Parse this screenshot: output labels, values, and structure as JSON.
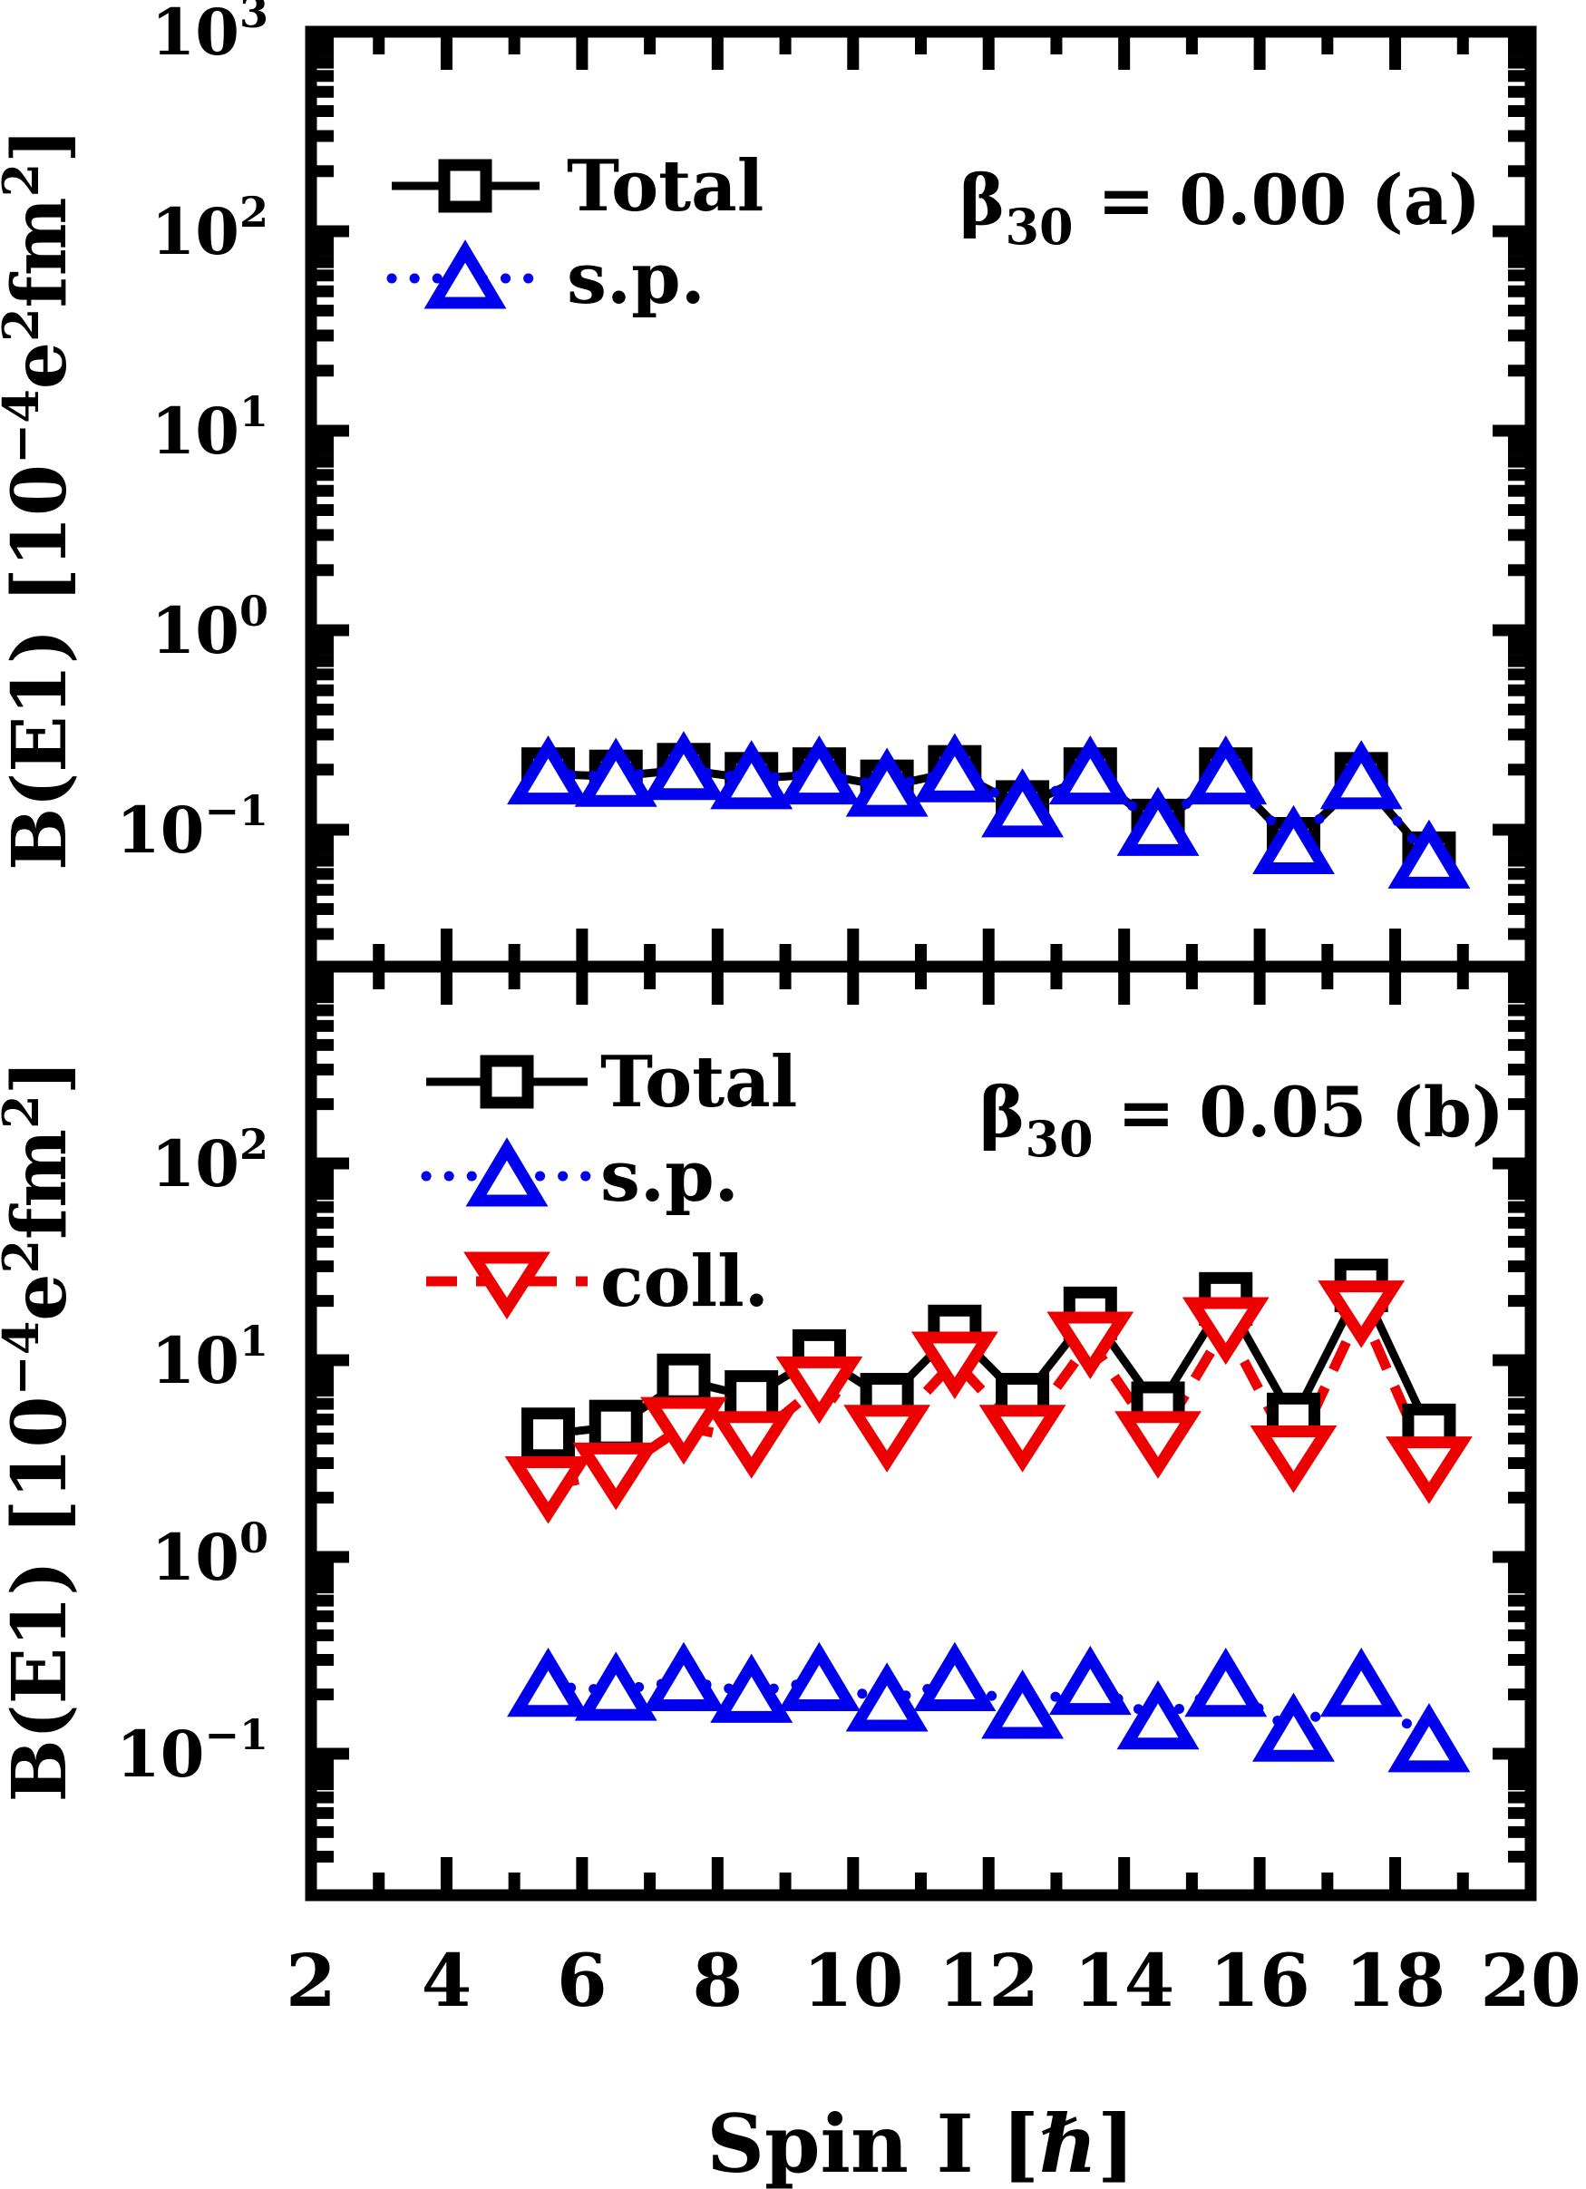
{
  "figure": {
    "background": "#ffffff",
    "x_axis": {
      "label": "Spin I [ℏ]",
      "tick_values": [
        2,
        4,
        6,
        8,
        10,
        12,
        14,
        16,
        18,
        20
      ],
      "tick_labels": [
        "2",
        "4",
        "6",
        "8",
        "10",
        "12",
        "14",
        "16",
        "18",
        "20"
      ],
      "minor_tick_values": [
        3,
        5,
        7,
        9,
        11,
        13,
        15,
        17,
        19
      ],
      "range": [
        2,
        20
      ]
    },
    "y_axis": {
      "label_plain": "B(E1) [10−4e2fm2]",
      "label_parts": [
        {
          "t": "B(E1) [10"
        },
        {
          "t": "−4",
          "sup": true
        },
        {
          "t": "e"
        },
        {
          "t": "2",
          "sup": true
        },
        {
          "t": "fm"
        },
        {
          "t": "2",
          "sup": true
        },
        {
          "t": "]"
        }
      ]
    },
    "panels": [
      {
        "id": "a",
        "title_parts": [
          {
            "t": "β"
          },
          {
            "t": "30",
            "sub": true
          },
          {
            "t": " = 0.00 "
          },
          {
            "t": "(a)"
          }
        ],
        "title_plain": "β30 = 0.00 (a)",
        "y_tick_exponents": [
          3,
          2,
          1,
          0,
          -1
        ],
        "legend": [
          {
            "label": "Total",
            "color": "#000000",
            "marker": "square",
            "line": "solid"
          },
          {
            "label": "s.p.",
            "color": "#0000EE",
            "marker": "triangle-up",
            "line": "dotted"
          }
        ]
      },
      {
        "id": "b",
        "title_parts": [
          {
            "t": "β"
          },
          {
            "t": "30",
            "sub": true
          },
          {
            "t": " = 0.05 "
          },
          {
            "t": "(b)"
          }
        ],
        "title_plain": "β30 = 0.05 (b)",
        "y_tick_exponents": [
          2,
          1,
          0,
          -1
        ],
        "legend": [
          {
            "label": "Total",
            "color": "#000000",
            "marker": "square",
            "line": "solid"
          },
          {
            "label": "s.p.",
            "color": "#0000EE",
            "marker": "triangle-up",
            "line": "dotted"
          },
          {
            "label": "coll.",
            "color": "#EE0000",
            "marker": "triangle-down",
            "line": "dashed"
          }
        ]
      }
    ]
  },
  "chart_data": [
    {
      "type": "line",
      "panel": "a",
      "title": "β30 = 0.00 (a)",
      "xlabel": "Spin I [ℏ]",
      "ylabel": "B(E1) [10−4 e2fm2]",
      "yscale": "log",
      "xlim": [
        2,
        20
      ],
      "ylim": [
        0.02,
        1000
      ],
      "legend_position": "upper-left",
      "grid": false,
      "x": [
        5.5,
        6.5,
        7.5,
        8.5,
        9.5,
        10.5,
        11.5,
        12.5,
        13.5,
        14.5,
        15.5,
        16.5,
        17.5,
        18.5
      ],
      "series": [
        {
          "name": "Total",
          "color": "#000000",
          "marker": "square",
          "line": "solid",
          "values": [
            0.19,
            0.185,
            0.2,
            0.18,
            0.19,
            0.165,
            0.195,
            0.13,
            0.19,
            0.105,
            0.19,
            0.085,
            0.18,
            0.072
          ]
        },
        {
          "name": "s.p.",
          "color": "#0000EE",
          "marker": "triangle-up",
          "line": "dotted",
          "values": [
            0.19,
            0.185,
            0.2,
            0.18,
            0.19,
            0.165,
            0.195,
            0.13,
            0.19,
            0.105,
            0.19,
            0.085,
            0.18,
            0.072
          ]
        }
      ]
    },
    {
      "type": "line",
      "panel": "b",
      "title": "β30 = 0.05 (b)",
      "xlabel": "Spin I [ℏ]",
      "ylabel": "B(E1) [10−4 e2fm2]",
      "yscale": "log",
      "xlim": [
        2,
        20
      ],
      "ylim": [
        0.02,
        1000
      ],
      "legend_position": "upper-left",
      "grid": false,
      "x": [
        5.5,
        6.5,
        7.5,
        8.5,
        9.5,
        10.5,
        11.5,
        12.5,
        13.5,
        14.5,
        15.5,
        16.5,
        17.5,
        18.5
      ],
      "series": [
        {
          "name": "Total",
          "color": "#000000",
          "marker": "square",
          "line": "solid",
          "values": [
            4.2,
            4.6,
            7.9,
            6.5,
            10.5,
            6.3,
            14.0,
            6.3,
            17.3,
            5.7,
            20.5,
            5.0,
            24.0,
            4.4
          ]
        },
        {
          "name": "s.p.",
          "color": "#0000EE",
          "marker": "triangle-up",
          "line": "dotted",
          "values": [
            0.22,
            0.21,
            0.235,
            0.205,
            0.235,
            0.185,
            0.235,
            0.17,
            0.225,
            0.15,
            0.22,
            0.13,
            0.22,
            0.115
          ]
        },
        {
          "name": "coll.",
          "color": "#EE0000",
          "marker": "triangle-down",
          "line": "dashed",
          "values": [
            2.3,
            2.7,
            4.6,
            3.9,
            7.4,
            4.2,
            9.9,
            4.2,
            12.5,
            3.9,
            14.8,
            3.3,
            18.0,
            2.9
          ]
        }
      ]
    }
  ]
}
